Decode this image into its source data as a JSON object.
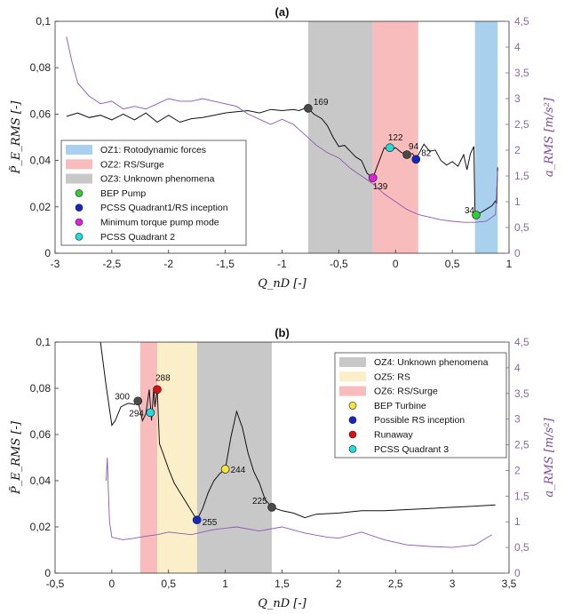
{
  "chart_data": [
    {
      "type": "line",
      "panel": "(a)",
      "title": "(a)",
      "xlabel": "Q_nD [-]",
      "ylabel": "P̃_E_RMS [-]",
      "ylabel_right": "a_RMS [m/s²]",
      "xlim": [
        -3,
        1
      ],
      "ylim": [
        0,
        0.1
      ],
      "ylim_right": [
        0,
        4.5
      ],
      "xticks": [
        "-3",
        "-2,5",
        "-2",
        "-1,5",
        "-1",
        "-0,5",
        "0",
        "0,5",
        "1"
      ],
      "yticks": [
        "0",
        "0,02",
        "0,04",
        "0,06",
        "0,08",
        "0,1"
      ],
      "yticks_right": [
        "0",
        "0,5",
        "1",
        "1,5",
        "2",
        "2,5",
        "3",
        "3,5",
        "4",
        "4,5"
      ],
      "zones": [
        {
          "label": "OZ1: Rotodynamic forces",
          "x": [
            0.7,
            0.9
          ],
          "color": "#a9d1ee"
        },
        {
          "label": "OZ2: RS/Surge",
          "x": [
            -0.2,
            0.2
          ],
          "color": "#f9bcbc"
        },
        {
          "label": "OZ3: Unknown phenomena",
          "x": [
            -0.77,
            -0.2
          ],
          "color": "#c8c8c8"
        }
      ],
      "points": [
        {
          "label": "169",
          "x": -0.77,
          "y": 0.0625,
          "color": "#4a4a4a"
        },
        {
          "label": "139",
          "x": -0.2,
          "y": 0.0325,
          "color": "#dd22dd"
        },
        {
          "label": "122",
          "x": -0.05,
          "y": 0.0455,
          "color": "#22dddd"
        },
        {
          "label": "94",
          "x": 0.1,
          "y": 0.0425,
          "color": "#4a4a4a"
        },
        {
          "label": "82",
          "x": 0.18,
          "y": 0.0405,
          "color": "#1525c8"
        },
        {
          "label": "34",
          "x": 0.71,
          "y": 0.0165,
          "color": "#33cc33"
        }
      ],
      "legend": [
        {
          "label": "OZ1: Rotodynamic forces",
          "kind": "patch",
          "color": "#a9d1ee"
        },
        {
          "label": "OZ2: RS/Surge",
          "kind": "patch",
          "color": "#f9bcbc"
        },
        {
          "label": "OZ3: Unknown phenomena",
          "kind": "patch",
          "color": "#c8c8c8"
        },
        {
          "label": "BEP Pump",
          "kind": "marker",
          "color": "#33cc33"
        },
        {
          "label": "PCSS Quadrant1/RS inception",
          "kind": "marker",
          "color": "#1525c8"
        },
        {
          "label": "Minimum torque pump mode",
          "kind": "marker",
          "color": "#dd22dd"
        },
        {
          "label": "PCSS Quadrant 2",
          "kind": "marker",
          "color": "#22dddd"
        }
      ],
      "legend_position": "lower-left",
      "series": [
        {
          "axis": "left",
          "color": "#111111",
          "x": [
            -2.9,
            -2.8,
            -2.7,
            -2.6,
            -2.5,
            -2.4,
            -2.3,
            -2.2,
            -2.1,
            -2.0,
            -1.9,
            -1.8,
            -1.7,
            -1.6,
            -1.5,
            -1.4,
            -1.3,
            -1.2,
            -1.1,
            -1.0,
            -0.9,
            -0.85,
            -0.8,
            -0.77,
            -0.72,
            -0.65,
            -0.6,
            -0.55,
            -0.5,
            -0.45,
            -0.4,
            -0.35,
            -0.3,
            -0.25,
            -0.2,
            -0.15,
            -0.1,
            -0.05,
            0.0,
            0.05,
            0.1,
            0.15,
            0.18,
            0.25,
            0.3,
            0.35,
            0.4,
            0.45,
            0.5,
            0.55,
            0.6,
            0.63,
            0.66,
            0.69,
            0.7,
            0.71,
            0.75,
            0.8,
            0.85,
            0.88,
            0.89,
            0.9
          ],
          "y": [
            0.059,
            0.0605,
            0.0585,
            0.0595,
            0.0575,
            0.06,
            0.0575,
            0.0605,
            0.0565,
            0.0595,
            0.0565,
            0.058,
            0.0585,
            0.0595,
            0.0605,
            0.061,
            0.0615,
            0.0605,
            0.062,
            0.0615,
            0.062,
            0.0615,
            0.0625,
            0.0625,
            0.06,
            0.058,
            0.055,
            0.05,
            0.046,
            0.0465,
            0.044,
            0.0415,
            0.04,
            0.0345,
            0.0325,
            0.039,
            0.0455,
            0.044,
            0.0455,
            0.0435,
            0.0425,
            0.043,
            0.0405,
            0.047,
            0.044,
            0.0445,
            0.04,
            0.038,
            0.0395,
            0.0375,
            0.0425,
            0.036,
            0.043,
            0.046,
            0.016,
            0.0165,
            0.0175,
            0.019,
            0.0205,
            0.0225,
            0.0215,
            0.037
          ]
        },
        {
          "axis": "right",
          "color": "#8a5ab0",
          "x": [
            -2.9,
            -2.85,
            -2.8,
            -2.7,
            -2.6,
            -2.5,
            -2.4,
            -2.3,
            -2.2,
            -2.1,
            -2.0,
            -1.9,
            -1.8,
            -1.7,
            -1.6,
            -1.5,
            -1.4,
            -1.3,
            -1.2,
            -1.1,
            -1.0,
            -0.9,
            -0.8,
            -0.7,
            -0.6,
            -0.5,
            -0.4,
            -0.3,
            -0.2,
            -0.1,
            0.0,
            0.1,
            0.2,
            0.3,
            0.4,
            0.5,
            0.6,
            0.7,
            0.8,
            0.85,
            0.88,
            0.9
          ],
          "y": [
            4.2,
            3.7,
            3.3,
            3.05,
            2.9,
            2.95,
            2.8,
            2.85,
            2.8,
            2.9,
            3.0,
            2.95,
            2.95,
            3.0,
            2.95,
            2.9,
            2.85,
            2.7,
            2.6,
            2.5,
            2.6,
            2.5,
            2.3,
            2.1,
            1.95,
            1.85,
            1.65,
            1.5,
            1.35,
            1.15,
            1.0,
            0.85,
            0.75,
            0.7,
            0.65,
            0.62,
            0.6,
            0.6,
            0.62,
            0.7,
            0.75,
            1.6
          ]
        }
      ]
    },
    {
      "type": "line",
      "panel": "(b)",
      "title": "(b)",
      "xlabel": "Q_nD [-]",
      "ylabel": "P̃_E_RMS [-]",
      "ylabel_right": "a_RMS [m/s²]",
      "xlim": [
        -0.5,
        3.5
      ],
      "ylim": [
        0,
        0.1
      ],
      "ylim_right": [
        0,
        4.5
      ],
      "xticks": [
        "-0,5",
        "0",
        "0,5",
        "1",
        "1,5",
        "2",
        "2,5",
        "3",
        "3,5"
      ],
      "yticks": [
        "0",
        "0,02",
        "0,04",
        "0,06",
        "0,08",
        "0,1"
      ],
      "yticks_right": [
        "0",
        "0,5",
        "1",
        "1,5",
        "2",
        "2,5",
        "3",
        "3,5",
        "4",
        "4,5"
      ],
      "zones": [
        {
          "label": "OZ4: Unknown phenomena",
          "x": [
            0.75,
            1.41
          ],
          "color": "#c8c8c8"
        },
        {
          "label": "OZ5: RS",
          "x": [
            0.4,
            0.75
          ],
          "color": "#faefc8"
        },
        {
          "label": "OZ6: RS/Surge",
          "x": [
            0.25,
            0.4
          ],
          "color": "#f9bcbc"
        }
      ],
      "points": [
        {
          "label": "300",
          "x": 0.23,
          "y": 0.0745,
          "color": "#4a4a4a"
        },
        {
          "label": "288",
          "x": 0.4,
          "y": 0.0795,
          "color": "#dd1111"
        },
        {
          "label": "294",
          "x": 0.34,
          "y": 0.0695,
          "color": "#22dddd"
        },
        {
          "label": "244",
          "x": 1.0,
          "y": 0.045,
          "color": "#f3e83a"
        },
        {
          "label": "255",
          "x": 0.75,
          "y": 0.023,
          "color": "#1525c8"
        },
        {
          "label": "225",
          "x": 1.41,
          "y": 0.0285,
          "color": "#4a4a4a"
        }
      ],
      "legend": [
        {
          "label": "OZ4: Unknown phenomena",
          "kind": "patch",
          "color": "#c8c8c8"
        },
        {
          "label": "OZ5: RS",
          "kind": "patch",
          "color": "#faefc8"
        },
        {
          "label": "OZ6: RS/Surge",
          "kind": "patch",
          "color": "#f9bcbc"
        },
        {
          "label": "BEP Turbine",
          "kind": "marker",
          "color": "#f3e83a"
        },
        {
          "label": "Possible RS inception",
          "kind": "marker",
          "color": "#1525c8"
        },
        {
          "label": "Runaway",
          "kind": "marker",
          "color": "#dd1111"
        },
        {
          "label": "PCSS Quadrant 3",
          "kind": "marker",
          "color": "#22dddd"
        }
      ],
      "legend_position": "top-right",
      "series": [
        {
          "axis": "left",
          "color": "#111111",
          "x": [
            -0.1,
            -0.1,
            -0.05,
            0.0,
            0.03,
            0.08,
            0.12,
            0.15,
            0.2,
            0.23,
            0.27,
            0.3,
            0.33,
            0.35,
            0.37,
            0.38,
            0.4,
            0.42,
            0.45,
            0.5,
            0.55,
            0.6,
            0.65,
            0.7,
            0.75,
            0.8,
            0.85,
            0.9,
            0.95,
            1.0,
            1.05,
            1.1,
            1.15,
            1.2,
            1.25,
            1.3,
            1.35,
            1.41,
            1.5,
            1.6,
            1.7,
            1.8,
            2.0,
            2.2,
            2.4,
            2.6,
            2.8,
            3.0,
            3.2,
            3.38
          ],
          "y": [
            0.1,
            0.1,
            0.081,
            0.064,
            0.066,
            0.072,
            0.073,
            0.0735,
            0.073,
            0.0745,
            0.066,
            0.069,
            0.0795,
            0.066,
            0.08,
            0.072,
            0.0795,
            0.056,
            0.052,
            0.045,
            0.039,
            0.035,
            0.031,
            0.027,
            0.023,
            0.028,
            0.035,
            0.04,
            0.043,
            0.045,
            0.059,
            0.07,
            0.063,
            0.052,
            0.044,
            0.039,
            0.032,
            0.0285,
            0.027,
            0.026,
            0.024,
            0.0255,
            0.026,
            0.027,
            0.027,
            0.0275,
            0.028,
            0.0285,
            0.029,
            0.0295
          ]
        },
        {
          "axis": "right",
          "color": "#8a5ab0",
          "x": [
            -0.05,
            -0.04,
            -0.03,
            -0.02,
            0.0,
            0.1,
            0.2,
            0.3,
            0.4,
            0.5,
            0.7,
            0.9,
            1.1,
            1.3,
            1.5,
            1.7,
            1.9,
            2.0,
            2.2,
            2.4,
            2.6,
            2.8,
            3.0,
            3.2,
            3.35
          ],
          "y": [
            1.8,
            2.25,
            1.6,
            1.0,
            0.7,
            0.65,
            0.68,
            0.72,
            0.75,
            0.8,
            0.75,
            0.85,
            0.9,
            0.82,
            0.9,
            0.78,
            0.7,
            0.68,
            0.8,
            0.65,
            0.55,
            0.52,
            0.5,
            0.55,
            0.75
          ]
        }
      ]
    }
  ]
}
